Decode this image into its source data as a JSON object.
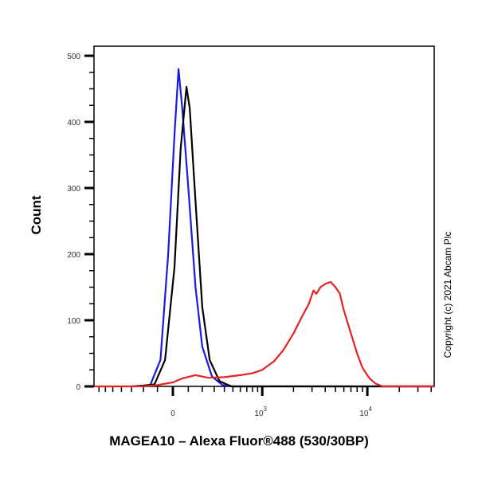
{
  "chart_data": {
    "type": "line",
    "title": "",
    "xlabel": "MAGEA10 – Alexa Fluor®488 (530/30BP)",
    "ylabel": "Count",
    "x_scale": "biexponential",
    "xlim": [
      -780,
      42500
    ],
    "ylim": [
      0,
      520
    ],
    "x_tick_labels": [
      {
        "value": 0,
        "label": "0"
      },
      {
        "value": 1000,
        "label": "10",
        "sup": "3"
      },
      {
        "value": 10000,
        "label": "10",
        "sup": "4"
      }
    ],
    "y_ticks": [
      0,
      100,
      200,
      300,
      400,
      500
    ],
    "grid": false,
    "series": [
      {
        "color": "#1a1adf",
        "points": [
          [
            -300,
            0
          ],
          [
            -150,
            2
          ],
          [
            -80,
            40
          ],
          [
            -30,
            200
          ],
          [
            10,
            380
          ],
          [
            36,
            480
          ],
          [
            60,
            420
          ],
          [
            100,
            300
          ],
          [
            150,
            150
          ],
          [
            200,
            60
          ],
          [
            280,
            15
          ],
          [
            380,
            2
          ],
          [
            500,
            0
          ],
          [
            42500,
            0
          ]
        ]
      },
      {
        "color": "#000000",
        "points": [
          [
            -250,
            0
          ],
          [
            -120,
            3
          ],
          [
            -50,
            40
          ],
          [
            10,
            180
          ],
          [
            50,
            360
          ],
          [
            88,
            453
          ],
          [
            110,
            420
          ],
          [
            150,
            280
          ],
          [
            200,
            120
          ],
          [
            260,
            40
          ],
          [
            350,
            8
          ],
          [
            480,
            0
          ],
          [
            42500,
            0
          ]
        ]
      },
      {
        "color": "#e8231f",
        "points": [
          [
            -780,
            0
          ],
          [
            -200,
            0
          ],
          [
            -100,
            2
          ],
          [
            0,
            6
          ],
          [
            60,
            12
          ],
          [
            150,
            17
          ],
          [
            250,
            13
          ],
          [
            400,
            14
          ],
          [
            600,
            17
          ],
          [
            800,
            20
          ],
          [
            1000,
            25
          ],
          [
            1300,
            38
          ],
          [
            1600,
            55
          ],
          [
            2000,
            80
          ],
          [
            2400,
            105
          ],
          [
            2800,
            125
          ],
          [
            3100,
            145
          ],
          [
            3300,
            140
          ],
          [
            3600,
            150
          ],
          [
            4000,
            155
          ],
          [
            4500,
            158
          ],
          [
            5000,
            150
          ],
          [
            5500,
            140
          ],
          [
            6000,
            115
          ],
          [
            7000,
            80
          ],
          [
            8000,
            50
          ],
          [
            9000,
            28
          ],
          [
            10500,
            12
          ],
          [
            12000,
            4
          ],
          [
            14000,
            0
          ],
          [
            42500,
            0
          ]
        ]
      }
    ]
  },
  "copyright": "Copyright (c) 2021 Abcam Plc"
}
